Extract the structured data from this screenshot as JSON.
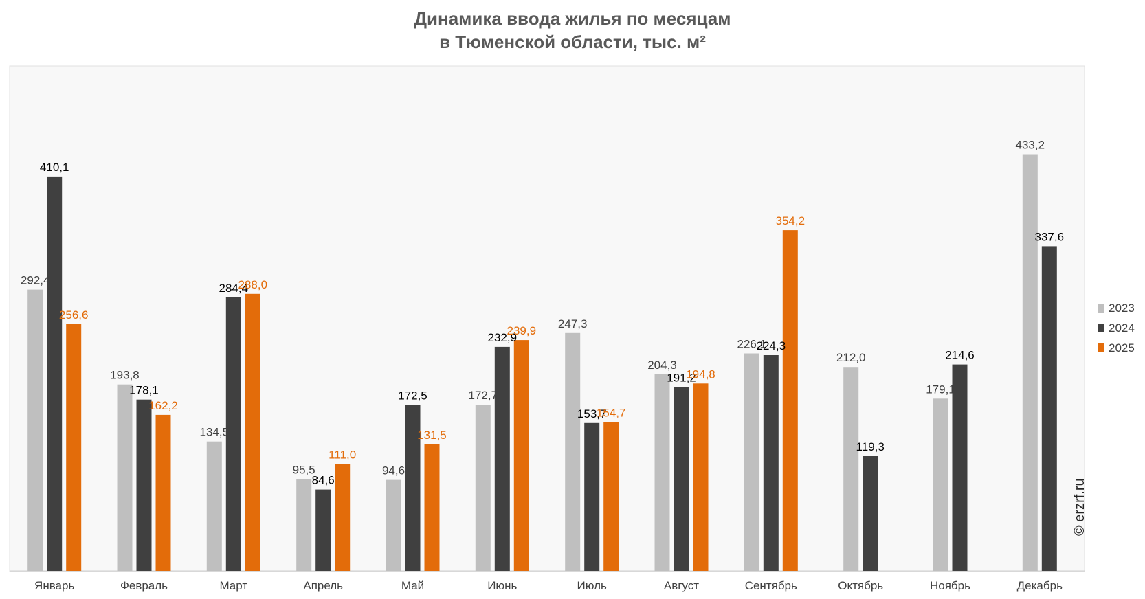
{
  "title_line1": "Динамика ввода жилья по месяцам",
  "title_line2": "в Тюменской области, тыс. м²",
  "watermark": "© erzrf.ru",
  "colors": {
    "2023": "#bfbfbf",
    "2024": "#404040",
    "2025": "#e36c0a",
    "background": "#f8f8f8"
  },
  "chart_data": {
    "type": "bar",
    "title": "Динамика ввода жилья по месяцам в Тюменской области, тыс. м²",
    "categories": [
      "Январь",
      "Февраль",
      "Март",
      "Апрель",
      "Май",
      "Июнь",
      "Июль",
      "Август",
      "Сентябрь",
      "Октябрь",
      "Ноябрь",
      "Декабрь"
    ],
    "series": [
      {
        "name": "2023",
        "values": [
          292.4,
          193.8,
          134.5,
          95.5,
          94.6,
          172.7,
          247.3,
          204.3,
          226.1,
          212.0,
          179.1,
          433.2
        ],
        "labels": [
          "292,4",
          "193,8",
          "134,5",
          "95,5",
          "94,6",
          "172,7",
          "247,3",
          "204,3",
          "226,1",
          "212,0",
          "179,1",
          "433,2"
        ]
      },
      {
        "name": "2024",
        "values": [
          410.1,
          178.1,
          284.4,
          84.6,
          172.5,
          232.9,
          153.7,
          191.2,
          224.3,
          119.3,
          214.6,
          337.6
        ],
        "labels": [
          "410,1",
          "178,1",
          "284,4",
          "84,6",
          "172,5",
          "232,9",
          "153,7",
          "191,2",
          "224,3",
          "119,3",
          "214,6",
          "337,6"
        ]
      },
      {
        "name": "2025",
        "values": [
          256.6,
          162.2,
          288.0,
          111.0,
          131.5,
          239.9,
          154.7,
          194.8,
          354.2,
          null,
          null,
          null
        ],
        "labels": [
          "256,6",
          "162,2",
          "288,0",
          "111,0",
          "131,5",
          "239,9",
          "154,7",
          "194,8",
          "354,2",
          null,
          null,
          null
        ]
      }
    ],
    "ylim": [
      0,
      540
    ],
    "grid": false,
    "legend": "right"
  }
}
